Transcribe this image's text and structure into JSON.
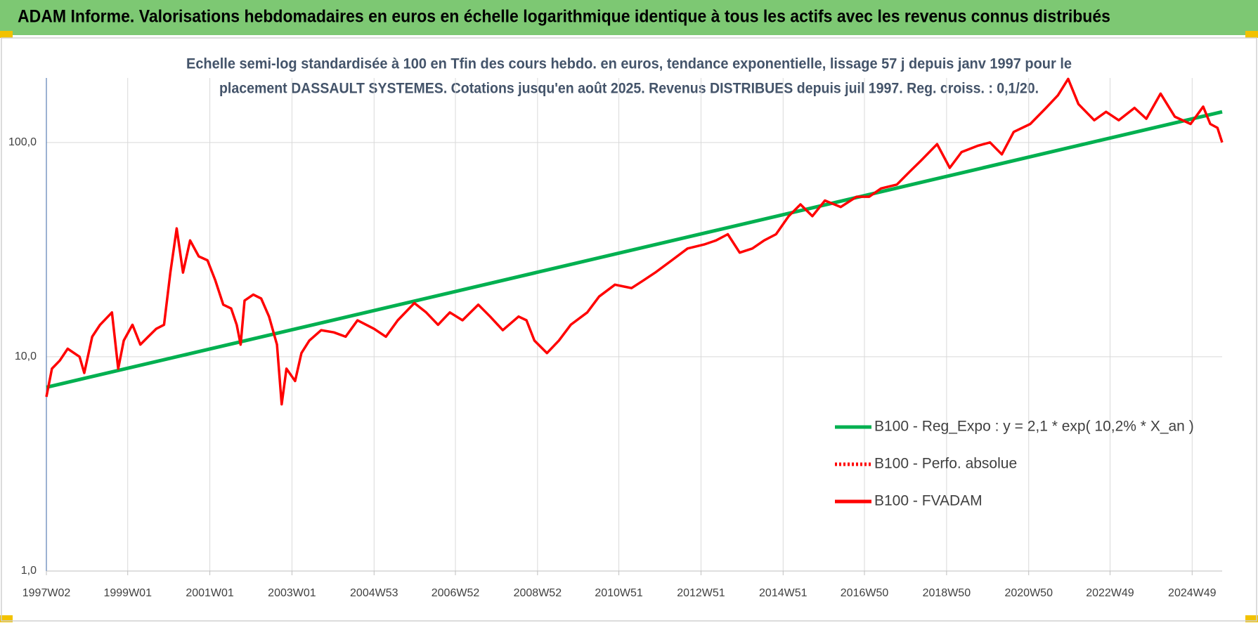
{
  "chart_data": {
    "type": "line",
    "title": "ADAM Informe. Valorisations hebdomadaires en euros en échelle logarithmique identique à tous les actifs avec les revenus connus distribués",
    "subtitle": [
      "Echelle semi-log standardisée à 100 en Tfin des cours hebdo. en euros, tendance exponentielle, lissage 57 j depuis janv 1997 pour le",
      "placement DASSAULT SYSTEMES.  Cotations jusqu'en août 2025. Revenus DISTRIBUES depuis juil 1997. Reg. croiss. : 0,1/20."
    ],
    "log_scale": true,
    "grid": true,
    "legend_position": "right",
    "xlim": [
      "1997W02",
      "2025W35"
    ],
    "xticks": [
      "1997W02",
      "1999W01",
      "2001W01",
      "2003W01",
      "2004W53",
      "2006W52",
      "2008W52",
      "2010W51",
      "2012W51",
      "2014W51",
      "2016W50",
      "2018W50",
      "2020W50",
      "2022W49",
      "2024W49"
    ],
    "ylim": [
      1,
      200
    ],
    "yticks": [
      {
        "value": 1,
        "label": "1,0"
      },
      {
        "value": 10,
        "label": "10,0"
      },
      {
        "value": 100,
        "label": "100,0"
      }
    ],
    "series": [
      {
        "name": "B100 - Reg_Expo : y = 2,1 * exp( 10,2% *  X_an )",
        "color": "#00b050",
        "style": "solid",
        "x": [
          "1997W02",
          "2025W35"
        ],
        "values": [
          7.2,
          139
        ]
      },
      {
        "name": "B100 - Perfo. absolue",
        "color": "#ff0000",
        "style": "dotted"
      },
      {
        "name": "B100 - FVADAM",
        "color": "#ff0000",
        "style": "solid",
        "x": [
          "1997W02",
          "1997W09",
          "1997W19",
          "1997W29",
          "1997W44",
          "1997W50",
          "1998W08",
          "1998W18",
          "1998W33",
          "1998W41",
          "1998W48",
          "1999W07",
          "1999W17",
          "1999W27",
          "1999W37",
          "1999W47",
          "2000W03",
          "2000W11",
          "2000W19",
          "2000W28",
          "2000W39",
          "2000W50",
          "2001W08",
          "2001W18",
          "2001W28",
          "2001W35",
          "2001W40",
          "2001W45",
          "2002W04",
          "2002W14",
          "2002W24",
          "2002W34",
          "2002W40",
          "2002W46",
          "2003W05",
          "2003W13",
          "2003W23",
          "2003W38",
          "2004W02",
          "2004W17",
          "2004W32",
          "2005W01",
          "2005W16",
          "2005W31",
          "2005W52",
          "2006W15",
          "2006W30",
          "2006W45",
          "2007W09",
          "2007W29",
          "2007W44",
          "2008W08",
          "2008W28",
          "2008W38",
          "2008W48",
          "2009W12",
          "2009W27",
          "2009W42",
          "2010W11",
          "2010W26",
          "2010W46",
          "2011W15",
          "2011W30",
          "2011W45",
          "2012W14",
          "2012W34",
          "2013W03",
          "2013W18",
          "2013W33",
          "2013W48",
          "2014W12",
          "2014W27",
          "2014W42",
          "2015W06",
          "2015W21",
          "2015W36",
          "2015W52",
          "2016W20",
          "2016W40",
          "2017W04",
          "2017W19",
          "2017W39",
          "2018W03",
          "2018W18",
          "2018W38",
          "2019W02",
          "2019W17",
          "2019W37",
          "2020W01",
          "2020W16",
          "2020W31",
          "2020W52",
          "2021W20",
          "2021W35",
          "2021W48",
          "2022W09",
          "2022W29",
          "2022W44",
          "2023W08",
          "2023W28",
          "2023W43",
          "2024W09",
          "2024W27",
          "2024W47",
          "2025W11",
          "2025W20",
          "2025W29",
          "2025W35"
        ],
        "values": [
          6.5,
          8.8,
          9.6,
          10.9,
          10,
          8.4,
          12.4,
          14.1,
          16.1,
          8.8,
          11.9,
          14.1,
          11.4,
          12.4,
          13.5,
          14.1,
          24.7,
          39.7,
          24.7,
          34.9,
          29.4,
          28.2,
          22.7,
          17.5,
          16.8,
          14.1,
          11.4,
          18.3,
          19.5,
          18.7,
          15.4,
          11.4,
          6.0,
          8.8,
          7.7,
          10.4,
          11.9,
          13.3,
          13.0,
          12.4,
          14.8,
          13.5,
          12.4,
          14.8,
          17.8,
          16.1,
          14.1,
          16.1,
          14.8,
          17.5,
          15.4,
          13.3,
          15.4,
          14.8,
          11.9,
          10.4,
          11.9,
          14.1,
          16.1,
          19.1,
          21.7,
          20.9,
          22.7,
          24.7,
          28.2,
          32.0,
          33.4,
          34.9,
          37.3,
          30.6,
          32.0,
          34.9,
          37.3,
          45.3,
          51.4,
          45.3,
          53.6,
          50.0,
          55.8,
          55.8,
          61.0,
          63.6,
          72.9,
          82.6,
          98.2,
          76.1,
          90.2,
          96.4,
          100,
          88.0,
          112,
          122,
          145,
          166,
          198,
          151,
          127,
          139,
          127,
          145,
          129,
          169,
          132,
          122,
          147,
          122,
          117,
          100
        ]
      }
    ]
  }
}
